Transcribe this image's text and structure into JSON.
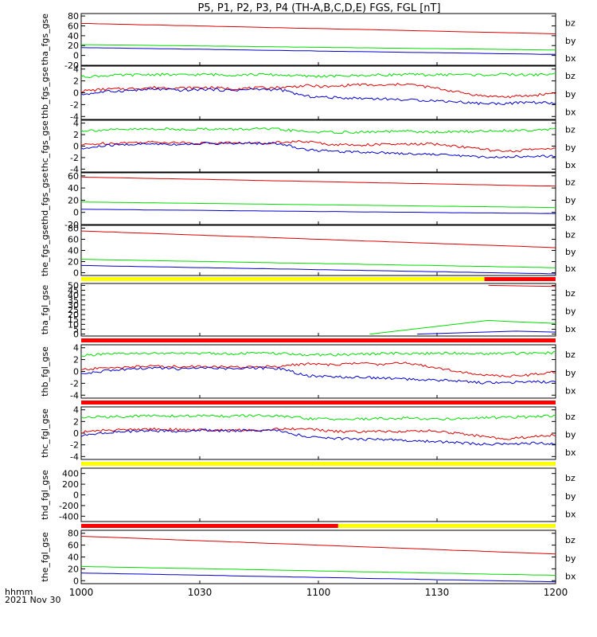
{
  "title": "P5, P1, P2, P3, P4 (TH-A,B,C,D,E) FGS, FGL [nT]",
  "footer": {
    "time_unit": "hhmm",
    "date": "2021 Nov 30"
  },
  "colors": {
    "bx": "#0000cc",
    "by": "#00dd00",
    "bz": "#dd0000",
    "bar_yellow": "#ffff00",
    "bar_red": "#ff0000"
  },
  "chart_data": {
    "type": "line",
    "x_axis": {
      "range": [
        "10:00",
        "12:00"
      ],
      "ticks": [
        "1000",
        "1030",
        "1100",
        "1130",
        "1200"
      ]
    },
    "components": [
      "bz",
      "by",
      "bx"
    ],
    "panels": [
      {
        "label": "tha_fgs_gse",
        "ylim": [
          -20,
          85
        ],
        "yticks": [
          "-20",
          "0",
          "20",
          "40",
          "60",
          "80"
        ],
        "series": [
          {
            "name": "bz",
            "start": 65,
            "end": 44
          },
          {
            "name": "by",
            "start": 22,
            "end": 11
          },
          {
            "name": "bx",
            "start": 16,
            "end": 2
          }
        ]
      },
      {
        "label": "thb_fgs_gse",
        "ylim": [
          -4.5,
          4.5
        ],
        "yticks": [
          "-4",
          "-2",
          "0",
          "2",
          "4"
        ],
        "series": [
          {
            "name": "bz",
            "values": [
              0.3,
              0.6,
              0.7,
              0.9,
              0.8,
              0.9,
              0.7,
              0.8,
              0.9,
              1.2,
              1.0,
              1.4,
              1.2,
              1.5,
              0.9,
              0.2,
              -0.5,
              -0.7,
              -0.5,
              0
            ]
          },
          {
            "name": "by",
            "values": [
              2.7,
              2.9,
              3.0,
              3.1,
              3.0,
              3.1,
              3.0,
              3.1,
              3.0,
              2.8,
              2.8,
              2.9,
              3.0,
              3.1,
              3.0,
              3.1,
              3.0,
              3.1,
              3.0,
              3.2
            ]
          },
          {
            "name": "bx",
            "values": [
              -0.3,
              0.2,
              0.4,
              0.6,
              0.4,
              0.6,
              0.4,
              0.6,
              0.5,
              -0.6,
              -0.8,
              -0.9,
              -1.0,
              -1.2,
              -1.3,
              -1.5,
              -1.8,
              -1.8,
              -1.6,
              -1.8
            ]
          }
        ]
      },
      {
        "label": "thc_fgs_gse",
        "ylim": [
          -4.5,
          4.5
        ],
        "yticks": [
          "-4",
          "-2",
          "0",
          "2",
          "4"
        ],
        "series": [
          {
            "name": "bz",
            "values": [
              0.2,
              0.5,
              0.6,
              0.7,
              0.6,
              0.5,
              0.6,
              0.5,
              0.7,
              0.8,
              0.3,
              0.2,
              0.3,
              0.3,
              0.4,
              0.0,
              -0.5,
              -1.0,
              -0.6,
              -0.3
            ]
          },
          {
            "name": "by",
            "values": [
              2.7,
              2.8,
              2.9,
              3.0,
              2.9,
              3.0,
              2.9,
              3.0,
              2.9,
              2.5,
              2.4,
              2.4,
              2.5,
              2.6,
              2.4,
              2.5,
              2.6,
              2.7,
              2.8,
              3.0
            ]
          },
          {
            "name": "bx",
            "values": [
              -0.5,
              0.1,
              0.3,
              0.4,
              0.3,
              0.5,
              0.4,
              0.5,
              0.4,
              -0.6,
              -0.9,
              -1.0,
              -1.1,
              -1.3,
              -1.4,
              -1.6,
              -1.9,
              -1.9,
              -1.7,
              -1.8
            ]
          }
        ]
      },
      {
        "label": "thd_fgs_gse",
        "ylim": [
          -20,
          65
        ],
        "yticks": [
          "-20",
          "0",
          "20",
          "40",
          "60"
        ],
        "series": [
          {
            "name": "bz",
            "start": 58,
            "end": 43
          },
          {
            "name": "by",
            "start": 17,
            "end": 8
          },
          {
            "name": "bx",
            "start": 5,
            "end": -2
          }
        ]
      },
      {
        "label": "the_fgs_gse",
        "ylim": [
          -5,
          85
        ],
        "yticks": [
          "0",
          "20",
          "40",
          "60",
          "80"
        ],
        "series": [
          {
            "name": "bz",
            "start": 75,
            "end": 45
          },
          {
            "name": "by",
            "start": 24,
            "end": 9
          },
          {
            "name": "bx",
            "start": 13,
            "end": -2
          }
        ]
      },
      {
        "label": "tha_fgl_gse",
        "ylim": [
          -2,
          52
        ],
        "yticks": [
          "0",
          "5",
          "10",
          "15",
          "20",
          "25",
          "30",
          "35",
          "40",
          "45",
          "50"
        ],
        "series": [
          {
            "name": "bz",
            "points": [
              [
                103,
                50
              ],
              [
                120,
                49
              ]
            ]
          },
          {
            "name": "by",
            "points": [
              [
                73,
                0
              ],
              [
                103,
                14
              ],
              [
                108,
                13
              ],
              [
                120,
                11
              ]
            ]
          },
          {
            "name": "bx",
            "points": [
              [
                85,
                0
              ],
              [
                110,
                3
              ],
              [
                120,
                2
              ]
            ]
          }
        ]
      },
      {
        "label": "thb_fgl_gse",
        "ylim": [
          -4.5,
          4.5
        ],
        "yticks": [
          "-4",
          "-2",
          "0",
          "2",
          "4"
        ],
        "series": [
          {
            "name": "bz",
            "values": [
              0.3,
              0.6,
              0.8,
              0.9,
              0.8,
              0.9,
              0.7,
              0.8,
              0.9,
              1.3,
              1.1,
              1.4,
              1.2,
              1.5,
              0.8,
              0.1,
              -0.6,
              -0.8,
              -0.6,
              0
            ]
          },
          {
            "name": "by",
            "values": [
              2.7,
              2.9,
              3.0,
              3.1,
              3.0,
              3.1,
              3.0,
              3.1,
              3.0,
              2.8,
              2.8,
              2.9,
              3.0,
              3.1,
              3.0,
              3.1,
              3.0,
              3.1,
              3.0,
              3.2
            ]
          },
          {
            "name": "bx",
            "values": [
              -0.4,
              0.1,
              0.4,
              0.6,
              0.4,
              0.6,
              0.4,
              0.6,
              0.5,
              -0.7,
              -0.9,
              -1.0,
              -1.1,
              -1.3,
              -1.4,
              -1.6,
              -1.9,
              -1.9,
              -1.7,
              -1.8
            ]
          }
        ]
      },
      {
        "label": "thc_fgl_gse",
        "ylim": [
          -4.5,
          4.5
        ],
        "yticks": [
          "-4",
          "-2",
          "0",
          "2",
          "4"
        ],
        "series": [
          {
            "name": "bz",
            "values": [
              0.2,
              0.5,
              0.6,
              0.7,
              0.6,
              0.5,
              0.6,
              0.5,
              0.7,
              0.8,
              0.3,
              0.2,
              0.3,
              0.3,
              0.4,
              0.0,
              -0.5,
              -1.0,
              -0.6,
              -0.3
            ]
          },
          {
            "name": "by",
            "values": [
              2.7,
              2.8,
              2.9,
              3.0,
              2.9,
              3.0,
              2.9,
              3.0,
              2.9,
              2.5,
              2.4,
              2.4,
              2.5,
              2.6,
              2.4,
              2.5,
              2.6,
              2.7,
              2.8,
              3.0
            ]
          },
          {
            "name": "bx",
            "values": [
              -0.5,
              0.1,
              0.3,
              0.4,
              0.3,
              0.5,
              0.4,
              0.5,
              0.4,
              -0.6,
              -0.9,
              -1.0,
              -1.1,
              -1.3,
              -1.4,
              -1.6,
              -1.9,
              -1.9,
              -1.7,
              -1.8
            ]
          }
        ]
      },
      {
        "label": "thd_fgl_gse",
        "ylim": [
          -500,
          500
        ],
        "yticks": [
          "-400",
          "-200",
          "0",
          "200",
          "400"
        ],
        "series": []
      },
      {
        "label": "the_fgl_gse",
        "ylim": [
          -5,
          85
        ],
        "yticks": [
          "0",
          "20",
          "40",
          "60",
          "80"
        ],
        "series": [
          {
            "name": "bz",
            "start": 75,
            "end": 45
          },
          {
            "name": "by",
            "start": 24,
            "end": 9
          },
          {
            "name": "bx",
            "start": 13,
            "end": -2
          }
        ]
      }
    ],
    "status_bars": [
      {
        "after_panel": 5,
        "segments": [
          {
            "from": 0,
            "to": 102,
            "color": "yellow"
          },
          {
            "from": 102,
            "to": 120,
            "color": "red"
          }
        ]
      },
      {
        "after_panel": 6,
        "segments": [
          {
            "from": 0,
            "to": 120,
            "color": "red"
          }
        ]
      },
      {
        "after_panel": 7,
        "segments": [
          {
            "from": 0,
            "to": 120,
            "color": "red"
          }
        ]
      },
      {
        "after_panel": 8,
        "segments": [
          {
            "from": 0,
            "to": 120,
            "color": "yellow"
          }
        ]
      },
      {
        "after_panel": 9,
        "segments": [
          {
            "from": 0,
            "to": 65,
            "color": "red"
          },
          {
            "from": 65,
            "to": 120,
            "color": "yellow"
          }
        ]
      }
    ]
  }
}
